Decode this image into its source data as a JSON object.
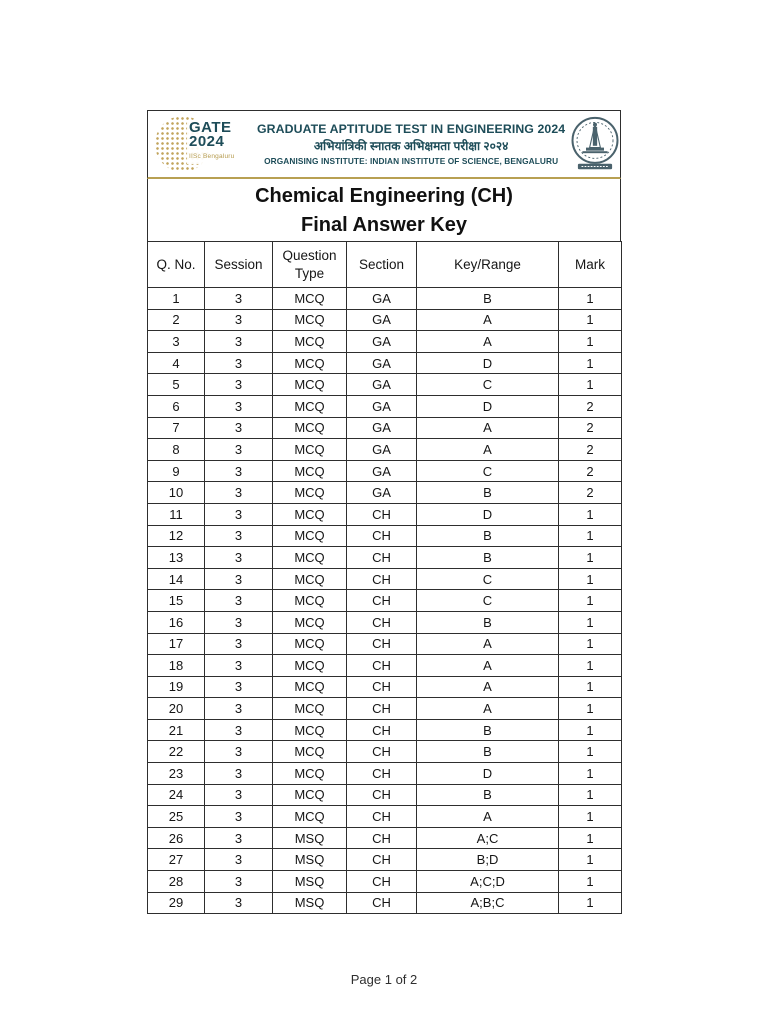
{
  "header": {
    "gate_logo": {
      "name": "GATE",
      "year": "2024",
      "caption": "IISc Bengaluru"
    },
    "title_line1": "GRADUATE APTITUDE TEST IN ENGINEERING 2024",
    "title_line2": "अभियांत्रिकी स्नातक अभिक्षमता परीक्षा २०२४",
    "title_line3": "ORGANISING INSTITUTE: INDIAN INSTITUTE OF SCIENCE, BENGALURU"
  },
  "document": {
    "title_line1": "Chemical Engineering (CH)",
    "title_line2": "Final Answer Key"
  },
  "table": {
    "columns": [
      "Q. No.",
      "Session",
      "Question Type",
      "Section",
      "Key/Range",
      "Mark"
    ],
    "rows": [
      [
        "1",
        "3",
        "MCQ",
        "GA",
        "B",
        "1"
      ],
      [
        "2",
        "3",
        "MCQ",
        "GA",
        "A",
        "1"
      ],
      [
        "3",
        "3",
        "MCQ",
        "GA",
        "A",
        "1"
      ],
      [
        "4",
        "3",
        "MCQ",
        "GA",
        "D",
        "1"
      ],
      [
        "5",
        "3",
        "MCQ",
        "GA",
        "C",
        "1"
      ],
      [
        "6",
        "3",
        "MCQ",
        "GA",
        "D",
        "2"
      ],
      [
        "7",
        "3",
        "MCQ",
        "GA",
        "A",
        "2"
      ],
      [
        "8",
        "3",
        "MCQ",
        "GA",
        "A",
        "2"
      ],
      [
        "9",
        "3",
        "MCQ",
        "GA",
        "C",
        "2"
      ],
      [
        "10",
        "3",
        "MCQ",
        "GA",
        "B",
        "2"
      ],
      [
        "11",
        "3",
        "MCQ",
        "CH",
        "D",
        "1"
      ],
      [
        "12",
        "3",
        "MCQ",
        "CH",
        "B",
        "1"
      ],
      [
        "13",
        "3",
        "MCQ",
        "CH",
        "B",
        "1"
      ],
      [
        "14",
        "3",
        "MCQ",
        "CH",
        "C",
        "1"
      ],
      [
        "15",
        "3",
        "MCQ",
        "CH",
        "C",
        "1"
      ],
      [
        "16",
        "3",
        "MCQ",
        "CH",
        "B",
        "1"
      ],
      [
        "17",
        "3",
        "MCQ",
        "CH",
        "A",
        "1"
      ],
      [
        "18",
        "3",
        "MCQ",
        "CH",
        "A",
        "1"
      ],
      [
        "19",
        "3",
        "MCQ",
        "CH",
        "A",
        "1"
      ],
      [
        "20",
        "3",
        "MCQ",
        "CH",
        "A",
        "1"
      ],
      [
        "21",
        "3",
        "MCQ",
        "CH",
        "B",
        "1"
      ],
      [
        "22",
        "3",
        "MCQ",
        "CH",
        "B",
        "1"
      ],
      [
        "23",
        "3",
        "MCQ",
        "CH",
        "D",
        "1"
      ],
      [
        "24",
        "3",
        "MCQ",
        "CH",
        "B",
        "1"
      ],
      [
        "25",
        "3",
        "MCQ",
        "CH",
        "A",
        "1"
      ],
      [
        "26",
        "3",
        "MSQ",
        "CH",
        "A;C",
        "1"
      ],
      [
        "27",
        "3",
        "MSQ",
        "CH",
        "B;D",
        "1"
      ],
      [
        "28",
        "3",
        "MSQ",
        "CH",
        "A;C;D",
        "1"
      ],
      [
        "29",
        "3",
        "MSQ",
        "CH",
        "A;B;C",
        "1"
      ]
    ]
  },
  "footer": {
    "page_indicator": "Page 1 of 2"
  },
  "icons": {
    "gate_globe": "gold-dotted-globe-icon",
    "iisc_seal": "iisc-circular-seal-icon"
  },
  "colors": {
    "brand_teal": "#1d4c58",
    "brand_gold": "#b8a052",
    "table_border": "#2e2e2e",
    "text": "#161616"
  }
}
